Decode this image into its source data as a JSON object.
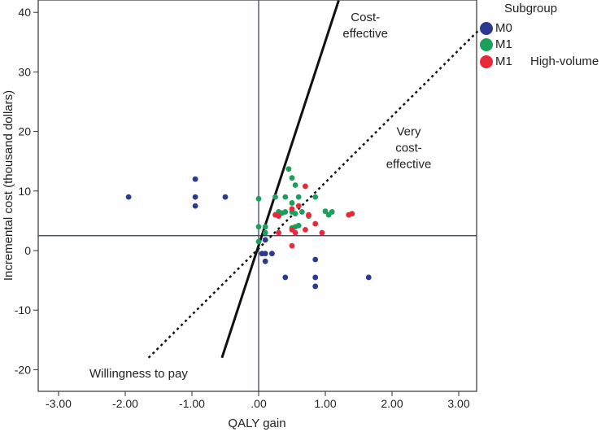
{
  "chart_data": {
    "type": "scatter",
    "title": "",
    "xlabel": "QALY gain",
    "ylabel": "Incremental cost (thousand dollars)",
    "xlim": [
      -3.3,
      3.3
    ],
    "ylim": [
      -22,
      42
    ],
    "xticks": [
      -3,
      -2,
      -1,
      0,
      1,
      2,
      3
    ],
    "xtick_labels": [
      "-3.00",
      "-2.00",
      "-1.00",
      ".00",
      "1.00",
      "2.00",
      "3.00"
    ],
    "yticks": [
      -20,
      -10,
      0,
      10,
      20,
      30,
      40
    ],
    "ytick_labels": [
      "-20",
      "-10",
      "0",
      "10",
      "20",
      "30",
      "40"
    ],
    "reference_lines": {
      "x": 0,
      "y": 2.5
    },
    "threshold_lines": [
      {
        "name": "solid",
        "style": "solid",
        "from": [
          -0.55,
          -18
        ],
        "to": [
          1.2,
          42
        ]
      },
      {
        "name": "dotted",
        "style": "dotted",
        "from": [
          -1.65,
          -18
        ],
        "to": [
          3.3,
          37
        ]
      }
    ],
    "annotations": [
      {
        "lines": [
          "Cost-",
          "effective"
        ],
        "x": 1.6,
        "y": 38.5
      },
      {
        "lines": [
          "Very",
          "cost-",
          "effective"
        ],
        "x": 2.25,
        "y": 19.3
      },
      {
        "lines": [
          "Willingness to pay"
        ],
        "x": -1.8,
        "y": -21.3
      }
    ],
    "legend": {
      "title": "Subgroup",
      "entries": [
        {
          "label": "M0",
          "extra": "",
          "color": "#2b3a8f"
        },
        {
          "label": "M1",
          "extra": "",
          "color": "#1aa05a"
        },
        {
          "label": "M1",
          "extra": "High-volume",
          "color": "#e8293a"
        }
      ],
      "placement": "top-right outside"
    },
    "series": [
      {
        "color": "#2b3a8f",
        "points": [
          [
            -1.95,
            9
          ],
          [
            -0.95,
            12
          ],
          [
            -0.95,
            9
          ],
          [
            -0.95,
            7.5
          ],
          [
            -0.5,
            9
          ],
          [
            0.05,
            -0.5
          ],
          [
            0.1,
            -0.5
          ],
          [
            0.1,
            -1.8
          ],
          [
            0.2,
            -0.5
          ],
          [
            0.1,
            1.8
          ],
          [
            0.4,
            -4.5
          ],
          [
            0.85,
            -1.5
          ],
          [
            0.85,
            -4.5
          ],
          [
            0.85,
            -6
          ],
          [
            1.65,
            -4.5
          ]
        ]
      },
      {
        "color": "#1aa05a",
        "points": [
          [
            0,
            8.7
          ],
          [
            0,
            4
          ],
          [
            0,
            1.5
          ],
          [
            0.1,
            4
          ],
          [
            0.1,
            3
          ],
          [
            0.25,
            9
          ],
          [
            0.3,
            6.5
          ],
          [
            0.35,
            6.3
          ],
          [
            0.4,
            9
          ],
          [
            0.45,
            13.7
          ],
          [
            0.5,
            12.2
          ],
          [
            0.5,
            8
          ],
          [
            0.5,
            6.5
          ],
          [
            0.55,
            11
          ],
          [
            0.55,
            6.2
          ],
          [
            0.6,
            9
          ],
          [
            0.55,
            4
          ],
          [
            0.6,
            4.2
          ],
          [
            0.5,
            3.8
          ],
          [
            0.65,
            6.5
          ],
          [
            0.4,
            6.5
          ],
          [
            0.85,
            9
          ],
          [
            1.0,
            6.6
          ],
          [
            1.05,
            6
          ],
          [
            1.1,
            6.5
          ],
          [
            0.75,
            5.8
          ]
        ]
      },
      {
        "color": "#e8293a",
        "points": [
          [
            0.25,
            6
          ],
          [
            0.3,
            5.8
          ],
          [
            0.3,
            3
          ],
          [
            0.5,
            7
          ],
          [
            0.5,
            3.5
          ],
          [
            0.55,
            3
          ],
          [
            0.5,
            0.8
          ],
          [
            0.7,
            10.8
          ],
          [
            0.75,
            6
          ],
          [
            0.7,
            3.5
          ],
          [
            0.95,
            3
          ],
          [
            1.35,
            6
          ],
          [
            1.4,
            6.2
          ],
          [
            0.85,
            4.5
          ],
          [
            0.6,
            7.5
          ]
        ]
      }
    ]
  }
}
